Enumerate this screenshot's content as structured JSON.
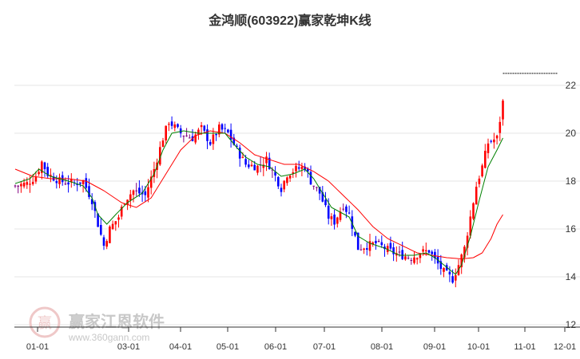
{
  "chart_data": {
    "type": "candlestick",
    "title": "金鸿顺(603922)赢家乾坤K线",
    "x_tick_labels": [
      "01-01",
      "03-01",
      "04-01",
      "05-01",
      "06-01",
      "07-01",
      "08-01",
      "09-01",
      "10-01",
      "11-01",
      "12-01"
    ],
    "y_tick_labels": [
      "12",
      "14",
      "16",
      "18",
      "20",
      "22"
    ],
    "ylim": [
      12,
      23
    ],
    "grid": true,
    "last_close_line": 22.5,
    "colors": {
      "up": "#ff0000",
      "down": "#0000ff",
      "neutral": "#800080",
      "ma_short": "#008000",
      "ma_long": "#ff0000",
      "grid": "#e6e6e6"
    },
    "price_path": [
      [
        0,
        17.8
      ],
      [
        4,
        17.9
      ],
      [
        7,
        18.2
      ],
      [
        9,
        18.8
      ],
      [
        11,
        18.3
      ],
      [
        15,
        18.0
      ],
      [
        20,
        17.9
      ],
      [
        23,
        18.0
      ],
      [
        26,
        17.2
      ],
      [
        28,
        16.2
      ],
      [
        30,
        15.3
      ],
      [
        32,
        16.0
      ],
      [
        35,
        16.5
      ],
      [
        37,
        17.2
      ],
      [
        40,
        17.6
      ],
      [
        44,
        17.4
      ],
      [
        47,
        18.5
      ],
      [
        50,
        19.8
      ],
      [
        52,
        20.5
      ],
      [
        56,
        20.0
      ],
      [
        60,
        19.8
      ],
      [
        63,
        20.2
      ],
      [
        66,
        19.6
      ],
      [
        69,
        20.2
      ],
      [
        72,
        20.0
      ],
      [
        75,
        19.3
      ],
      [
        78,
        18.7
      ],
      [
        82,
        18.6
      ],
      [
        85,
        18.9
      ],
      [
        88,
        18.2
      ],
      [
        90,
        17.7
      ],
      [
        92,
        18.3
      ],
      [
        95,
        18.5
      ],
      [
        98,
        18.6
      ],
      [
        100,
        18.0
      ],
      [
        103,
        17.5
      ],
      [
        106,
        16.5
      ],
      [
        108,
        16.3
      ],
      [
        111,
        17.0
      ],
      [
        113,
        16.6
      ],
      [
        116,
        15.2
      ],
      [
        119,
        15.3
      ],
      [
        122,
        15.4
      ],
      [
        125,
        15.2
      ],
      [
        128,
        15.0
      ],
      [
        131,
        14.9
      ],
      [
        134,
        14.8
      ],
      [
        137,
        15.0
      ],
      [
        140,
        15.1
      ],
      [
        142,
        14.7
      ],
      [
        145,
        14.2
      ],
      [
        148,
        13.9
      ],
      [
        150,
        14.5
      ],
      [
        152,
        15.2
      ],
      [
        154,
        16.5
      ],
      [
        156,
        17.8
      ],
      [
        158,
        18.6
      ],
      [
        160,
        19.6
      ],
      [
        163,
        19.8
      ],
      [
        165,
        21.3
      ]
    ],
    "ma_short": [
      [
        0,
        17.9
      ],
      [
        5,
        18.1
      ],
      [
        8,
        18.5
      ],
      [
        12,
        18.2
      ],
      [
        18,
        18.0
      ],
      [
        23,
        17.8
      ],
      [
        26,
        17.3
      ],
      [
        28,
        16.6
      ],
      [
        31,
        16.2
      ],
      [
        34,
        16.6
      ],
      [
        38,
        17.1
      ],
      [
        43,
        17.5
      ],
      [
        47,
        18.3
      ],
      [
        50,
        19.3
      ],
      [
        53,
        20.0
      ],
      [
        57,
        20.1
      ],
      [
        62,
        20.0
      ],
      [
        67,
        20.0
      ],
      [
        71,
        20.0
      ],
      [
        75,
        19.4
      ],
      [
        78,
        19.0
      ],
      [
        82,
        18.7
      ],
      [
        86,
        18.6
      ],
      [
        90,
        18.2
      ],
      [
        94,
        18.3
      ],
      [
        98,
        18.5
      ],
      [
        101,
        18.1
      ],
      [
        104,
        17.5
      ],
      [
        107,
        16.9
      ],
      [
        110,
        16.7
      ],
      [
        113,
        16.5
      ],
      [
        116,
        15.7
      ],
      [
        120,
        15.4
      ],
      [
        125,
        15.2
      ],
      [
        130,
        14.9
      ],
      [
        135,
        14.9
      ],
      [
        139,
        15.0
      ],
      [
        142,
        14.8
      ],
      [
        146,
        14.4
      ],
      [
        149,
        14.1
      ],
      [
        151,
        14.5
      ],
      [
        154,
        15.7
      ],
      [
        157,
        17.2
      ],
      [
        160,
        18.6
      ],
      [
        163,
        19.3
      ],
      [
        165,
        19.8
      ]
    ],
    "ma_long": [
      [
        0,
        18.5
      ],
      [
        6,
        18.2
      ],
      [
        12,
        18.1
      ],
      [
        18,
        18.1
      ],
      [
        24,
        18.0
      ],
      [
        30,
        17.6
      ],
      [
        36,
        17.1
      ],
      [
        41,
        16.9
      ],
      [
        46,
        17.3
      ],
      [
        51,
        18.3
      ],
      [
        56,
        19.3
      ],
      [
        61,
        19.9
      ],
      [
        66,
        20.1
      ],
      [
        71,
        20.0
      ],
      [
        76,
        19.6
      ],
      [
        81,
        19.1
      ],
      [
        86,
        18.9
      ],
      [
        91,
        18.7
      ],
      [
        96,
        18.7
      ],
      [
        101,
        18.4
      ],
      [
        106,
        18.0
      ],
      [
        111,
        17.4
      ],
      [
        116,
        16.8
      ],
      [
        121,
        16.1
      ],
      [
        126,
        15.6
      ],
      [
        131,
        15.3
      ],
      [
        136,
        15.0
      ],
      [
        141,
        14.9
      ],
      [
        146,
        14.8
      ],
      [
        151,
        14.75
      ],
      [
        155,
        14.8
      ],
      [
        158,
        15.0
      ],
      [
        161,
        15.6
      ],
      [
        163,
        16.2
      ],
      [
        165,
        16.6
      ]
    ]
  },
  "watermark": {
    "brand_text": "赢家江恩软件",
    "url_text": "www.360gann.com",
    "logo_glyph": "赢"
  }
}
